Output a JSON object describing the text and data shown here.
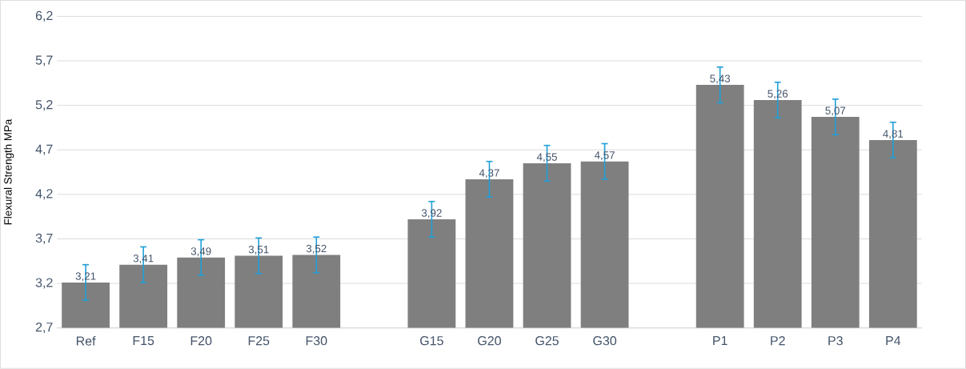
{
  "chart_data": {
    "type": "bar",
    "ylabel": "Flexural Strength MPa",
    "categories": [
      "Ref",
      "F15",
      "F20",
      "F25",
      "F30",
      null,
      "G15",
      "G20",
      "G25",
      "G30",
      null,
      "P1",
      "P2",
      "P3",
      "P4"
    ],
    "values": [
      3.21,
      3.41,
      3.49,
      3.51,
      3.52,
      null,
      3.92,
      4.37,
      4.55,
      4.57,
      null,
      5.43,
      5.26,
      5.07,
      4.81
    ],
    "value_labels": [
      "3,21",
      "3,41",
      "3,49",
      "3,51",
      "3,52",
      null,
      "3,92",
      "4,37",
      "4,55",
      "4,57",
      null,
      "5,43",
      "5,26",
      "5,07",
      "4,81"
    ],
    "errors": [
      0.2,
      0.2,
      0.2,
      0.2,
      0.2,
      null,
      0.2,
      0.2,
      0.2,
      0.2,
      null,
      0.2,
      0.2,
      0.2,
      0.2
    ],
    "color": "#7f7f7f",
    "ylim": [
      2.7,
      6.2
    ],
    "yticks": [
      {
        "value": 2.7,
        "label": "2,7"
      },
      {
        "value": 3.2,
        "label": "3,2"
      },
      {
        "value": 3.7,
        "label": "3,7"
      },
      {
        "value": 4.2,
        "label": "4,2"
      },
      {
        "value": 4.7,
        "label": "4,7"
      },
      {
        "value": 5.2,
        "label": "5,2"
      },
      {
        "value": 5.7,
        "label": "5,7"
      },
      {
        "value": 6.2,
        "label": "6,2"
      }
    ],
    "grid": "y"
  }
}
